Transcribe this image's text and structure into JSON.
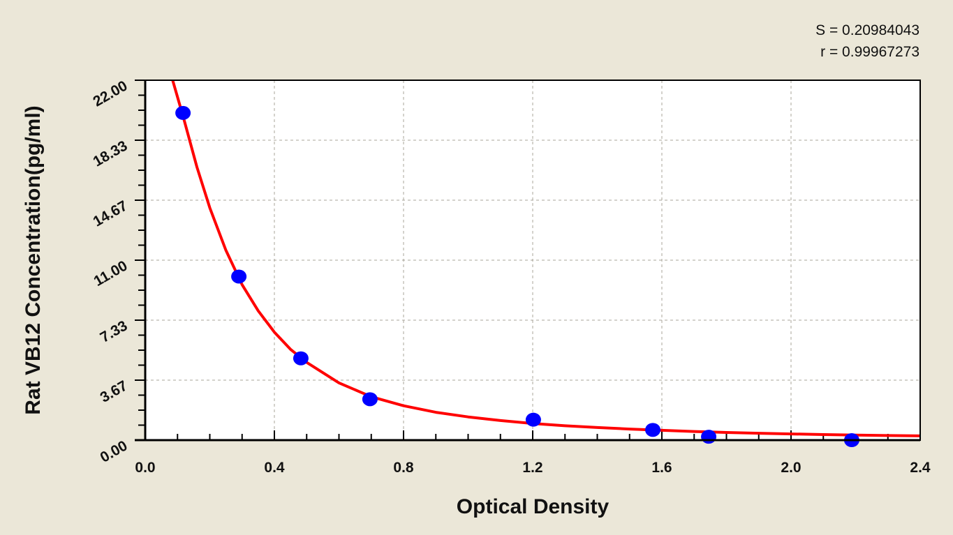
{
  "stats": {
    "s_label": "S = 0.20984043",
    "r_label": "r = 0.99967273"
  },
  "chart_data": {
    "type": "scatter",
    "title": "",
    "xlabel": "Optical Density",
    "ylabel": "Rat VB12 Concentration(pg/ml)",
    "xlim": [
      0.0,
      2.4
    ],
    "ylim": [
      0.0,
      22.0
    ],
    "x_ticks": [
      "0.0",
      "0.4",
      "0.8",
      "1.2",
      "1.6",
      "2.0",
      "2.4"
    ],
    "y_ticks": [
      "0.00",
      "3.67",
      "7.33",
      "11.00",
      "14.67",
      "18.33",
      "22.00"
    ],
    "grid": true,
    "legend": "none",
    "annotations": [
      "S = 0.20984043",
      "r = 0.99967273"
    ],
    "series": [
      {
        "name": "Standards",
        "type": "scatter",
        "color": "#0000ff",
        "x": [
          0.117,
          0.29,
          0.482,
          0.696,
          1.202,
          1.572,
          1.745,
          2.188
        ],
        "y": [
          20.0,
          10.0,
          5.0,
          2.5,
          1.25,
          0.625,
          0.21,
          0.0
        ]
      },
      {
        "name": "Fitted curve",
        "type": "line",
        "color": "#ff0000",
        "x": [
          0.085,
          0.12,
          0.16,
          0.2,
          0.25,
          0.3,
          0.35,
          0.4,
          0.45,
          0.5,
          0.6,
          0.7,
          0.8,
          0.9,
          1.0,
          1.1,
          1.2,
          1.3,
          1.4,
          1.5,
          1.6,
          1.7,
          1.8,
          1.9,
          2.0,
          2.1,
          2.2,
          2.3,
          2.4
        ],
        "y": [
          22.0,
          19.6,
          16.7,
          14.2,
          11.6,
          9.5,
          7.9,
          6.6,
          5.55,
          4.75,
          3.5,
          2.65,
          2.1,
          1.7,
          1.42,
          1.2,
          1.02,
          0.88,
          0.77,
          0.68,
          0.6,
          0.53,
          0.47,
          0.42,
          0.38,
          0.34,
          0.31,
          0.28,
          0.26
        ]
      }
    ]
  }
}
